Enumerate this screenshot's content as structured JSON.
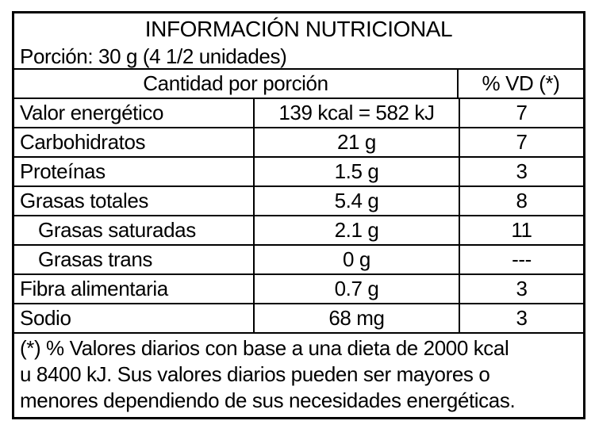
{
  "label": {
    "title": "INFORMACIÓN NUTRICIONAL",
    "portion": "Porción: 30 g (4 1/2 unidades)",
    "columns": {
      "amount_header": "Cantidad por porción",
      "dv_header": "% VD (*)"
    },
    "rows": [
      {
        "name": "Valor energético",
        "amount": "139 kcal = 582 kJ",
        "dv": "7",
        "indent": false
      },
      {
        "name": "Carbohidratos",
        "amount": "21 g",
        "dv": "7",
        "indent": false
      },
      {
        "name": "Proteínas",
        "amount": "1.5 g",
        "dv": "3",
        "indent": false
      },
      {
        "name": "Grasas totales",
        "amount": "5.4 g",
        "dv": "8",
        "indent": false
      },
      {
        "name": "Grasas saturadas",
        "amount": "2.1 g",
        "dv": "11",
        "indent": true
      },
      {
        "name": "Grasas trans",
        "amount": "0 g",
        "dv": "---",
        "indent": true
      },
      {
        "name": "Fibra alimentaria",
        "amount": "0.7 g",
        "dv": "3",
        "indent": false
      },
      {
        "name": "Sodio",
        "amount": "68 mg",
        "dv": "3",
        "indent": false
      }
    ],
    "footnote_lines": [
      "(*) % Valores diarios con base a una dieta de 2000 kcal",
      "u 8400 kJ. Sus valores diarios pueden ser mayores o",
      "menores dependiendo de sus necesidades energéticas."
    ],
    "colors": {
      "border": "#000000",
      "text": "#000000",
      "background": "#ffffff"
    }
  }
}
